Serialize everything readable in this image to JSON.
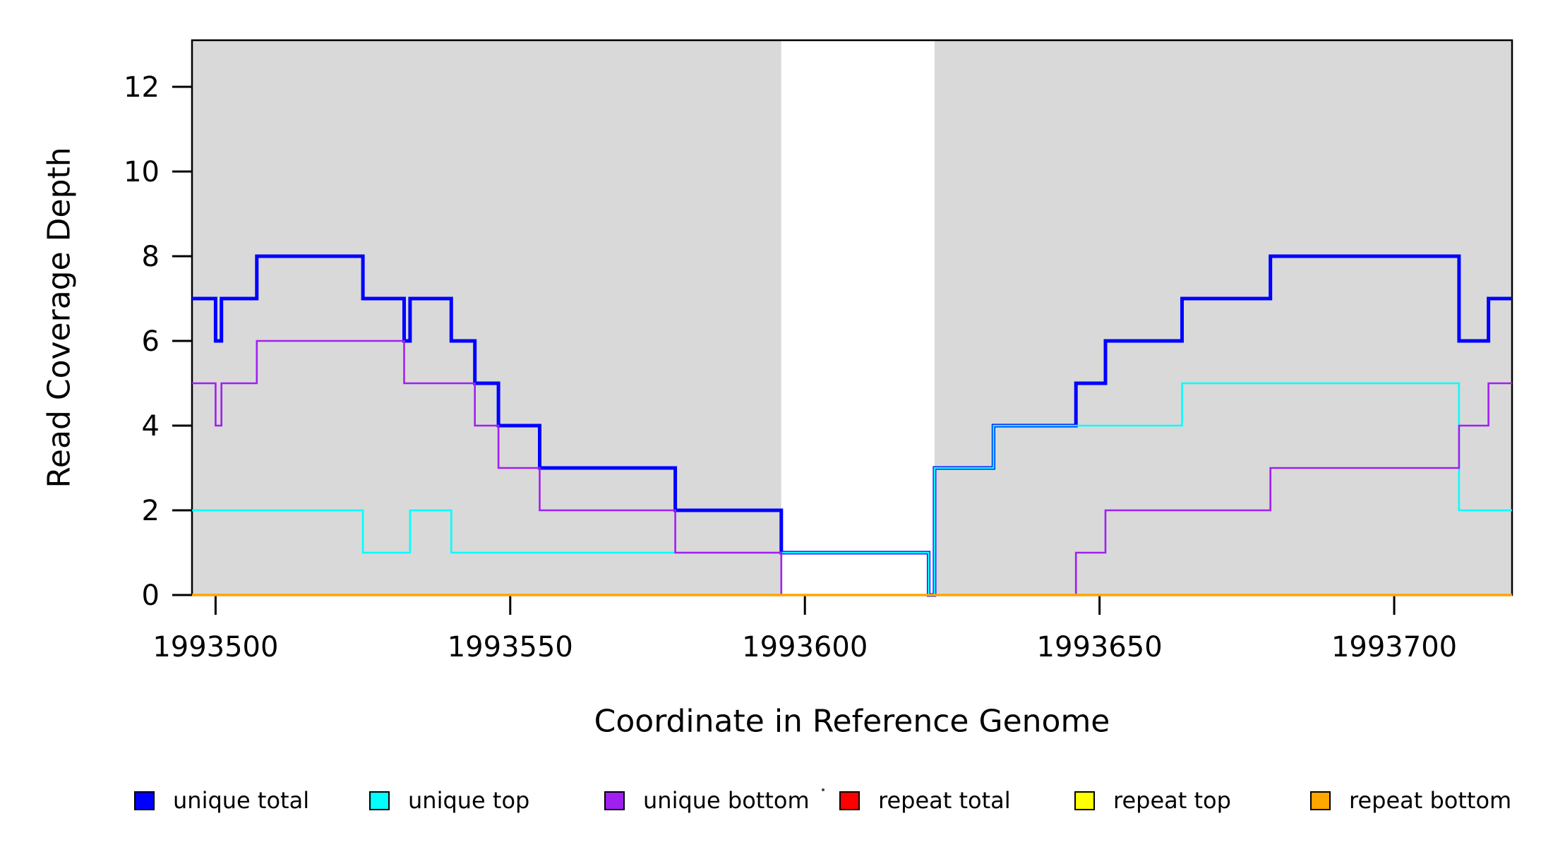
{
  "chart_data": {
    "type": "line",
    "subtype": "step",
    "title": "",
    "xlabel": "Coordinate in Reference Genome",
    "ylabel": "Read Coverage Depth",
    "xlim": [
      1993496,
      1993720
    ],
    "ylim": [
      0,
      13.1
    ],
    "x_ticks": [
      1993500,
      1993550,
      1993600,
      1993650,
      1993700
    ],
    "y_ticks": [
      0,
      2,
      4,
      6,
      8,
      10,
      12
    ],
    "grid": false,
    "legend_position": "bottom",
    "background_bands": [
      {
        "name": "unique-region-left",
        "x0": 1993496,
        "x1": 1993596,
        "color": "#d9d9d9"
      },
      {
        "name": "gap-region",
        "x0": 1993596,
        "x1": 1993622,
        "color": "#ffffff"
      },
      {
        "name": "unique-region-right",
        "x0": 1993622,
        "x1": 1993720,
        "color": "#d9d9d9"
      }
    ],
    "series": [
      {
        "name": "unique total",
        "color": "#0000ff",
        "line_width": 5,
        "points": [
          [
            1993496,
            7
          ],
          [
            1993500,
            6
          ],
          [
            1993501,
            7
          ],
          [
            1993507,
            8
          ],
          [
            1993525,
            7
          ],
          [
            1993532,
            6
          ],
          [
            1993533,
            7
          ],
          [
            1993540,
            6
          ],
          [
            1993544,
            5
          ],
          [
            1993548,
            4
          ],
          [
            1993555,
            3
          ],
          [
            1993578,
            2
          ],
          [
            1993596,
            1
          ],
          [
            1993621,
            0
          ],
          [
            1993622,
            3
          ],
          [
            1993632,
            4
          ],
          [
            1993646,
            5
          ],
          [
            1993651,
            6
          ],
          [
            1993664,
            7
          ],
          [
            1993679,
            8
          ],
          [
            1993711,
            6
          ],
          [
            1993716,
            7
          ]
        ]
      },
      {
        "name": "unique top",
        "color": "#00ffff",
        "line_width": 2.6,
        "points": [
          [
            1993496,
            2
          ],
          [
            1993525,
            1
          ],
          [
            1993533,
            2
          ],
          [
            1993540,
            1
          ],
          [
            1993621,
            0
          ],
          [
            1993622,
            3
          ],
          [
            1993632,
            4
          ],
          [
            1993664,
            5
          ],
          [
            1993711,
            2
          ]
        ]
      },
      {
        "name": "unique bottom",
        "color": "#a020f0",
        "line_width": 2.6,
        "points": [
          [
            1993496,
            5
          ],
          [
            1993500,
            4
          ],
          [
            1993501,
            5
          ],
          [
            1993507,
            6
          ],
          [
            1993532,
            5
          ],
          [
            1993544,
            4
          ],
          [
            1993548,
            3
          ],
          [
            1993555,
            2
          ],
          [
            1993578,
            1
          ],
          [
            1993596,
            0
          ],
          [
            1993646,
            1
          ],
          [
            1993651,
            2
          ],
          [
            1993679,
            3
          ],
          [
            1993711,
            4
          ],
          [
            1993716,
            5
          ]
        ]
      },
      {
        "name": "repeat total",
        "color": "#ff0000",
        "line_width": 3,
        "points": [
          [
            1993496,
            0
          ]
        ]
      },
      {
        "name": "repeat top",
        "color": "#ffff00",
        "line_width": 3,
        "points": [
          [
            1993496,
            0
          ]
        ]
      },
      {
        "name": "repeat bottom",
        "color": "#ffa500",
        "line_width": 3.6,
        "points": [
          [
            1993496,
            0
          ]
        ]
      }
    ],
    "legend_items": [
      {
        "label": "unique total",
        "color": "#0000ff"
      },
      {
        "label": "unique top",
        "color": "#00ffff"
      },
      {
        "label": "unique bottom",
        "color": "#a020f0"
      },
      {
        "label": "repeat total",
        "color": "#ff0000"
      },
      {
        "label": "repeat top",
        "color": "#ffff00"
      },
      {
        "label": "repeat bottom",
        "color": "#ffa500"
      }
    ]
  }
}
